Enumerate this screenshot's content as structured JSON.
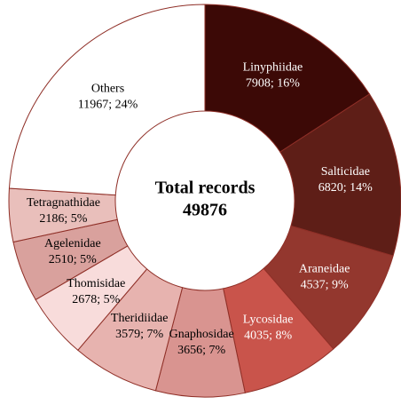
{
  "chart_data": {
    "type": "donut",
    "center_label": "Total records",
    "total": 49876,
    "categories": [
      "Linyphiidae",
      "Salticidae",
      "Araneidae",
      "Lycosidae",
      "Gnaphosidae",
      "Theridiidae",
      "Thomisidae",
      "Agelenidae",
      "Tetragnathidae",
      "Others"
    ],
    "values": [
      7908,
      6820,
      4537,
      4035,
      3656,
      3579,
      2678,
      2510,
      2186,
      11967
    ],
    "value_labels": [
      "7908; 16%",
      "6820; 14%",
      "4537; 9%",
      "4035; 8%",
      "3656; 7%",
      "3579; 7%",
      "2678; 5%",
      "2510; 5%",
      "2186; 5%",
      "11967; 24%"
    ],
    "colors": [
      "#3c0906",
      "#5e1e17",
      "#93372e",
      "#c9544b",
      "#d99490",
      "#e7b3af",
      "#f8dcdb",
      "#d9a19d",
      "#e9bfbb",
      "#ffffff"
    ],
    "start_angle": 0,
    "direction": "clockwise"
  }
}
